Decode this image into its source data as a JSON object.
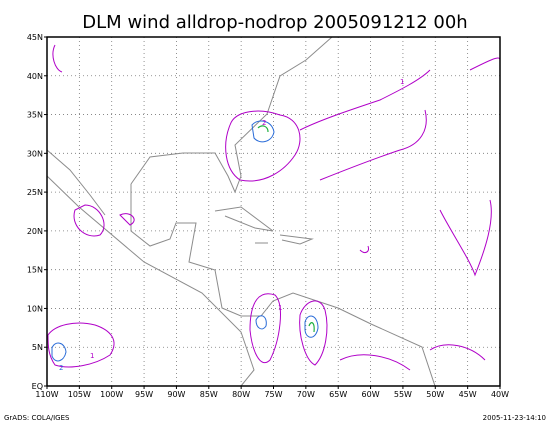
{
  "title": "DLM wind alldrop-nodrop 2005091212 00h",
  "x_labels": [
    "110W",
    "105W",
    "100W",
    "95W",
    "90W",
    "85W",
    "80W",
    "75W",
    "70W",
    "65W",
    "60W",
    "55W",
    "50W",
    "45W",
    "40W"
  ],
  "y_labels": [
    "EQ",
    "5N",
    "10N",
    "15N",
    "20N",
    "25N",
    "30N",
    "35N",
    "40N",
    "45N"
  ],
  "contour_labels": [
    "2",
    "1",
    "1",
    "2",
    "1"
  ],
  "footer": {
    "left": "GrADS: COLA/IGES",
    "right": "2005-11-23-14:10"
  }
}
